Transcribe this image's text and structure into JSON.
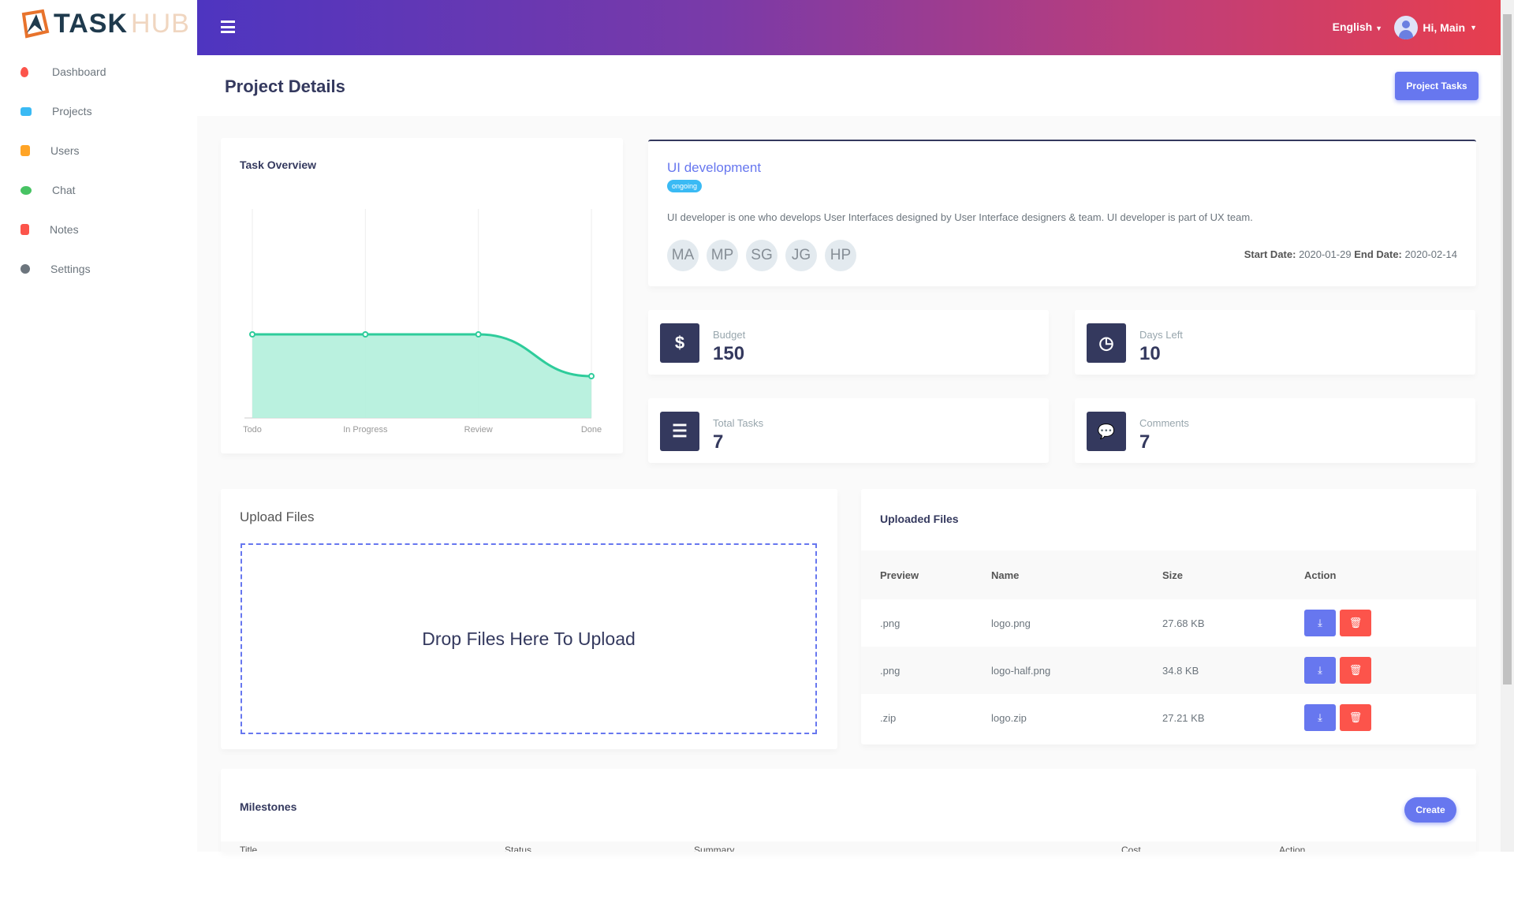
{
  "app": {
    "logo_text_1": "TASK",
    "logo_text_2": "HUB"
  },
  "sidebar": {
    "items": [
      {
        "label": "Dashboard",
        "icon": "fire-icon",
        "color": "#fc544b"
      },
      {
        "label": "Projects",
        "icon": "briefcase-icon",
        "color": "#3abaf4"
      },
      {
        "label": "Users",
        "icon": "user-icon",
        "color": "#ffa426"
      },
      {
        "label": "Chat",
        "icon": "comments-icon",
        "color": "#47c363"
      },
      {
        "label": "Notes",
        "icon": "clipboard-icon",
        "color": "#fc544b"
      },
      {
        "label": "Settings",
        "icon": "gear-icon",
        "color": "#6c757d"
      }
    ]
  },
  "topbar": {
    "language": "English",
    "user": "Hi, Main"
  },
  "page": {
    "title": "Project Details",
    "project_tasks_label": "Project Tasks"
  },
  "project": {
    "title": "UI development",
    "status": "ongoing",
    "description": "UI developer is one who develops User Interfaces designed by User Interface designers & team. UI developer is part of UX team.",
    "members": [
      "MA",
      "MP",
      "SG",
      "JG",
      "HP"
    ],
    "start_label": "Start Date:",
    "start": "2020-01-29",
    "end_label": "End Date:",
    "end": "2020-02-14"
  },
  "stats": [
    {
      "label": "Budget",
      "value": "150",
      "icon": "$"
    },
    {
      "label": "Days Left",
      "value": "10",
      "icon": "◷"
    },
    {
      "label": "Total Tasks",
      "value": "7",
      "icon": "☰"
    },
    {
      "label": "Comments",
      "value": "7",
      "icon": "💬"
    }
  ],
  "task_overview": {
    "title": "Task Overview"
  },
  "chart_data": {
    "type": "area",
    "title": "Task Overview",
    "categories": [
      "Todo",
      "In Progress",
      "Review",
      "Done"
    ],
    "values": [
      2,
      2,
      2,
      1
    ],
    "ylim": [
      0,
      5
    ],
    "color": "#2ecc9b",
    "fill": "#b2f0dc",
    "grid": true
  },
  "upload": {
    "title": "Upload Files",
    "drop_text": "Drop Files Here To Upload"
  },
  "files": {
    "title": "Uploaded Files",
    "headers": [
      "Preview",
      "Name",
      "Size",
      "Action"
    ],
    "rows": [
      {
        "preview": ".png",
        "name": "logo.png",
        "size": "27.68 KB"
      },
      {
        "preview": ".png",
        "name": "logo-half.png",
        "size": "34.8 KB"
      },
      {
        "preview": ".zip",
        "name": "logo.zip",
        "size": "27.21 KB"
      }
    ]
  },
  "milestones": {
    "title": "Milestones",
    "create_label": "Create",
    "headers": [
      "Title",
      "Status",
      "Summary",
      "Cost",
      "Action"
    ]
  }
}
